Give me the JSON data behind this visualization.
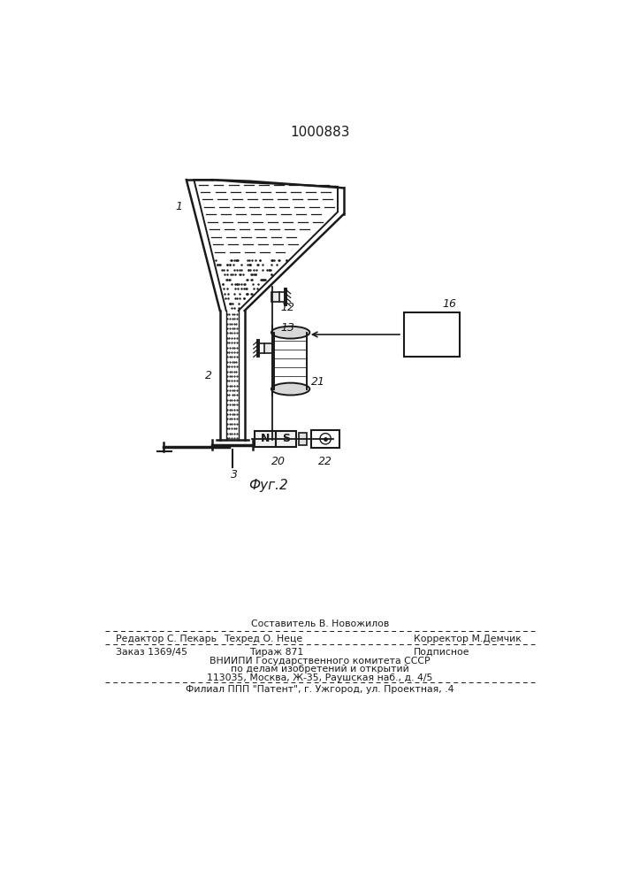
{
  "title": "1000883",
  "fig_label": "Фуг.2",
  "bg_color": "#ffffff",
  "line_color": "#1a1a1a",
  "footer": {
    "composer": "Составитель В. Новожилов",
    "editor": "Редактор С. Пекарь",
    "techred": "Техред О. Неце",
    "corrector": "Корректор М.Демчик",
    "order": "Заказ 1369/45",
    "tirazh": "Тираж 871",
    "podpisnoe": "Подписное",
    "vniip1": "ВНИИПИ Государственного комитета СССР",
    "vniip2": "по делам изобретений и открытий",
    "address": "113035, Москва, Ж-35, Раушская наб., д. 4/5",
    "filial": "Филиал ППП \"Патент\", г. Ужгород, ул. Проектная, .4"
  }
}
